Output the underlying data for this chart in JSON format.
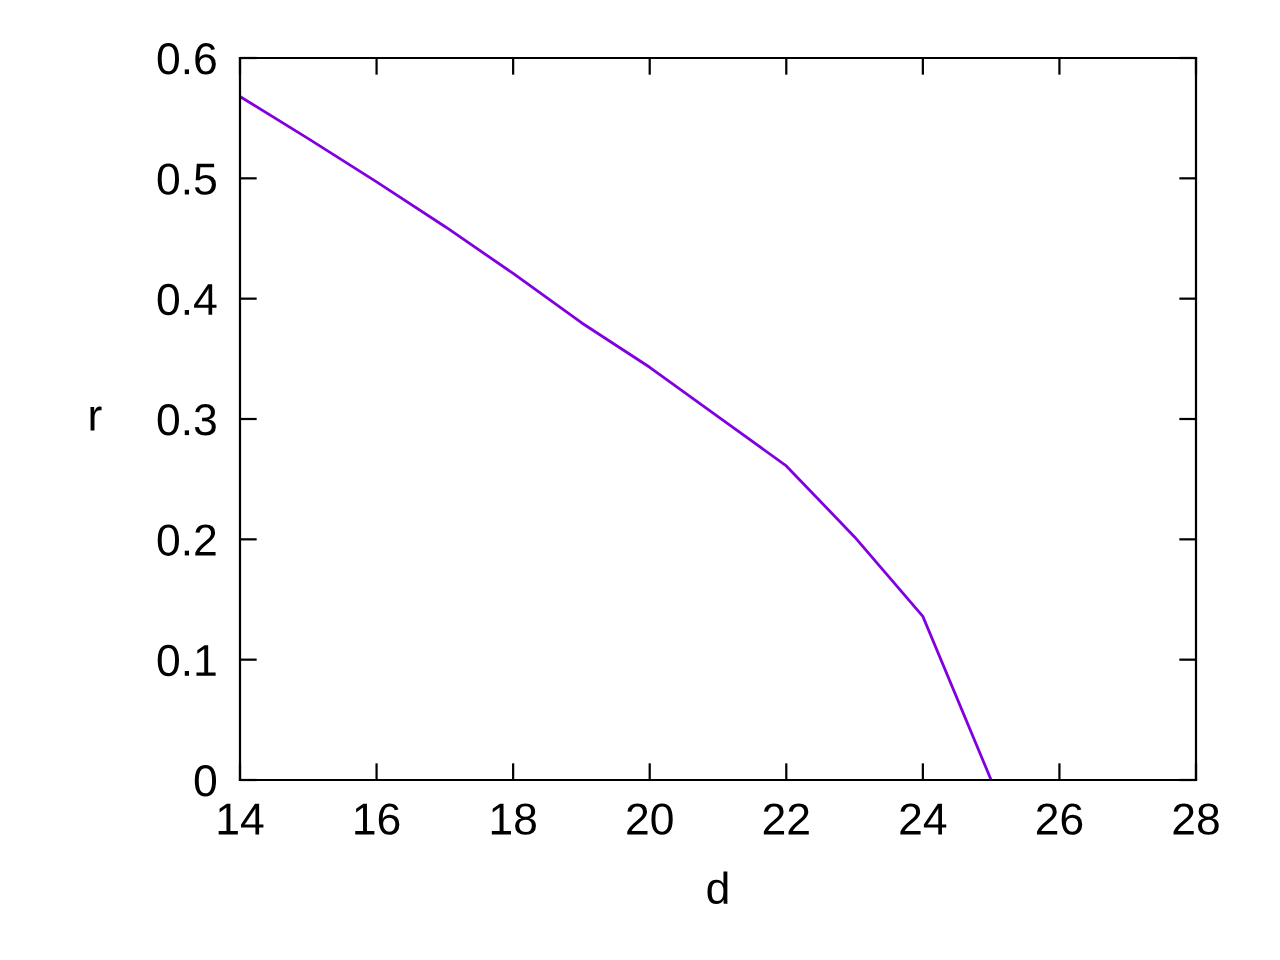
{
  "chart_data": {
    "type": "line",
    "xlabel": "d",
    "ylabel": "r",
    "x": [
      14,
      15,
      16,
      17,
      18,
      19,
      20,
      21,
      22,
      23,
      24,
      25
    ],
    "series": [
      {
        "color": "#8000e0",
        "values": [
          0.568,
          0.533,
          0.497,
          0.46,
          0.421,
          0.38,
          0.343,
          0.302,
          0.261,
          0.202,
          0.136,
          0
        ]
      }
    ],
    "xlim": [
      14,
      28
    ],
    "ylim": [
      0,
      0.6
    ],
    "xticks": [
      14,
      16,
      18,
      20,
      22,
      24,
      26,
      28
    ],
    "yticks": [
      0,
      0.1,
      0.2,
      0.3,
      0.4,
      0.5,
      0.6
    ],
    "grid": false,
    "legend": false,
    "marker": "none",
    "line_style": "solid"
  }
}
